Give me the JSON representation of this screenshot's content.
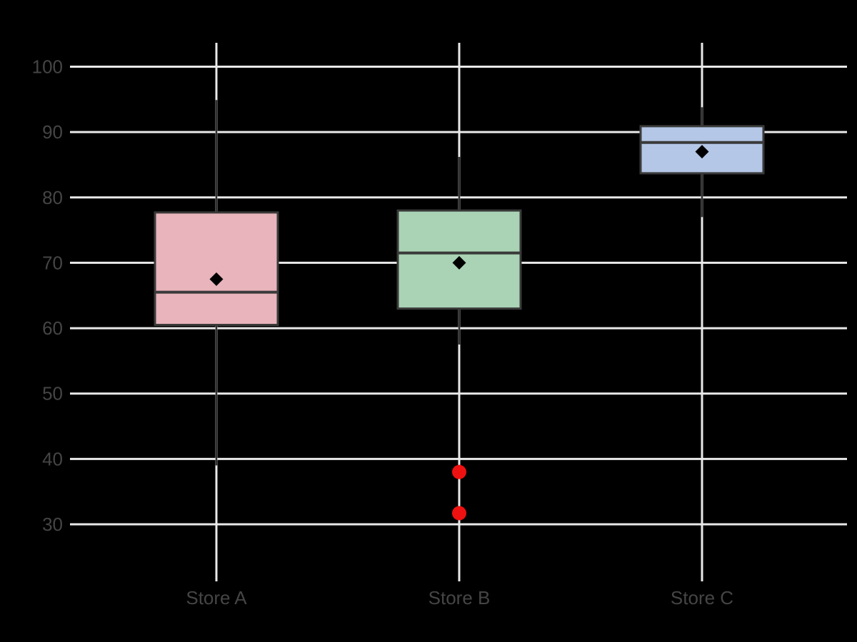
{
  "chart_data": {
    "type": "box",
    "title": "",
    "xlabel": "",
    "ylabel": "",
    "categories": [
      "Store A",
      "Store B",
      "Store C"
    ],
    "y_ticks": [
      100,
      90,
      80,
      70,
      60,
      50,
      40,
      30
    ],
    "ylim": [
      21.3,
      103.7
    ],
    "grid": true,
    "legend": "none",
    "series": [
      {
        "name": "Store A",
        "whisker_low": 39,
        "q1": 60.5,
        "median": 65.5,
        "q3": 77.7,
        "whisker_high": 94.9,
        "mean": 67.5,
        "outliers": [],
        "fill": "#e9b4bc"
      },
      {
        "name": "Store B",
        "whisker_low": 57.5,
        "q1": 63,
        "median": 71.5,
        "q3": 78,
        "whisker_high": 86.2,
        "mean": 70,
        "outliers": [
          38,
          31.7
        ],
        "fill": "#a9d3b4"
      },
      {
        "name": "Store C",
        "whisker_low": 77,
        "q1": 83.7,
        "median": 88.4,
        "q3": 90.9,
        "whisker_high": 93.8,
        "mean": 87,
        "outliers": [],
        "fill": "#b4c7e6"
      }
    ],
    "colors": {
      "background": "#000000",
      "gridline": "#e9e9e9",
      "tick_text": "#454545",
      "box_edge": "#3a3a3a",
      "median_line": "#3a3a3a",
      "whisker": "#303030",
      "mean_marker": "#000000",
      "outlier": "#ee1111"
    }
  }
}
